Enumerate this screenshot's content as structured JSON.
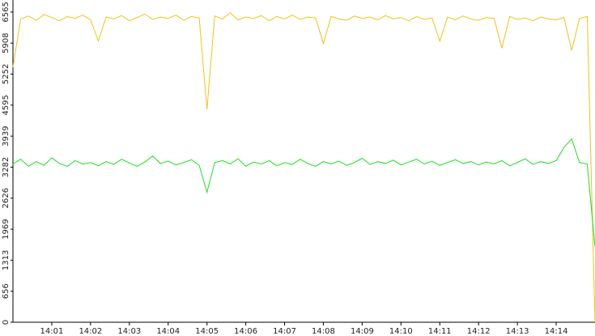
{
  "chart_data": {
    "type": "line",
    "x": [
      0,
      0.2,
      0.4,
      0.6,
      0.8,
      1,
      1.2,
      1.4,
      1.6,
      1.8,
      2,
      2.2,
      2.4,
      2.6,
      2.8,
      3,
      3.2,
      3.4,
      3.6,
      3.8,
      4,
      4.2,
      4.4,
      4.6,
      4.8,
      5,
      5.2,
      5.4,
      5.6,
      5.8,
      6,
      6.2,
      6.4,
      6.6,
      6.8,
      7,
      7.2,
      7.4,
      7.6,
      7.8,
      8,
      8.2,
      8.4,
      8.6,
      8.8,
      9,
      9.2,
      9.4,
      9.6,
      9.8,
      10,
      10.2,
      10.4,
      10.6,
      10.8,
      11,
      11.2,
      11.4,
      11.6,
      11.8,
      12,
      12.2,
      12.4,
      12.6,
      12.8,
      13,
      13.2,
      13.4,
      13.6,
      13.8,
      14,
      14.2,
      14.4,
      14.6,
      14.8,
      15
    ],
    "series": [
      {
        "color": "#f2c21b",
        "values": [
          5400,
          6420,
          6480,
          6390,
          6510,
          6450,
          6380,
          6470,
          6430,
          6500,
          6400,
          5950,
          6460,
          6420,
          6490,
          6380,
          6450,
          6520,
          6410,
          6460,
          6430,
          6500,
          6390,
          6470,
          6440,
          4500,
          6480,
          6420,
          6550,
          6400,
          6460,
          6430,
          6490,
          6380,
          6470,
          6420,
          6500,
          6410,
          6460,
          6440,
          5900,
          6470,
          6420,
          6390,
          6480,
          6430,
          6460,
          6400,
          6490,
          6420,
          6450,
          6380,
          6470,
          6410,
          6440,
          5950,
          6460,
          6400,
          6480,
          6420,
          6390,
          6450,
          6430,
          5800,
          6470,
          6410,
          6440,
          6380,
          6460,
          6420,
          6400,
          6450,
          5750,
          6430,
          6470,
          0
        ]
      },
      {
        "color": "#22dd22",
        "values": [
          3350,
          3450,
          3300,
          3400,
          3320,
          3480,
          3360,
          3300,
          3420,
          3350,
          3380,
          3310,
          3400,
          3340,
          3450,
          3370,
          3300,
          3390,
          3520,
          3360,
          3410,
          3330,
          3380,
          3440,
          3320,
          2750,
          3380,
          3420,
          3350,
          3460,
          3300,
          3390,
          3350,
          3420,
          3310,
          3380,
          3340,
          3450,
          3360,
          3300,
          3400,
          3350,
          3410,
          3320,
          3380,
          3470,
          3340,
          3400,
          3360,
          3430,
          3330,
          3390,
          3450,
          3350,
          3410,
          3320,
          3380,
          3440,
          3360,
          3400,
          3330,
          3390,
          3350,
          3420,
          3310,
          3380,
          3460,
          3340,
          3400,
          3360,
          3420,
          3700,
          3880,
          3380,
          3350,
          1600
        ]
      }
    ],
    "xlim": [
      0,
      15
    ],
    "xticks": [
      {
        "value": 1,
        "label": "14:01"
      },
      {
        "value": 2,
        "label": "14:02"
      },
      {
        "value": 3,
        "label": "14:03"
      },
      {
        "value": 4,
        "label": "14:04"
      },
      {
        "value": 5,
        "label": "14:05"
      },
      {
        "value": 6,
        "label": "14:06"
      },
      {
        "value": 7,
        "label": "14:07"
      },
      {
        "value": 8,
        "label": "14:08"
      },
      {
        "value": 9,
        "label": "14:09"
      },
      {
        "value": 10,
        "label": "14:10"
      },
      {
        "value": 11,
        "label": "14:11"
      },
      {
        "value": 12,
        "label": "14:12"
      },
      {
        "value": 13,
        "label": "14:13"
      },
      {
        "value": 14,
        "label": "14:14"
      }
    ],
    "ylim": [
      0,
      6820
    ],
    "yticks": [
      0,
      656,
      1313,
      1969,
      2626,
      3282,
      3939,
      4595,
      5252,
      5908,
      6565
    ]
  }
}
